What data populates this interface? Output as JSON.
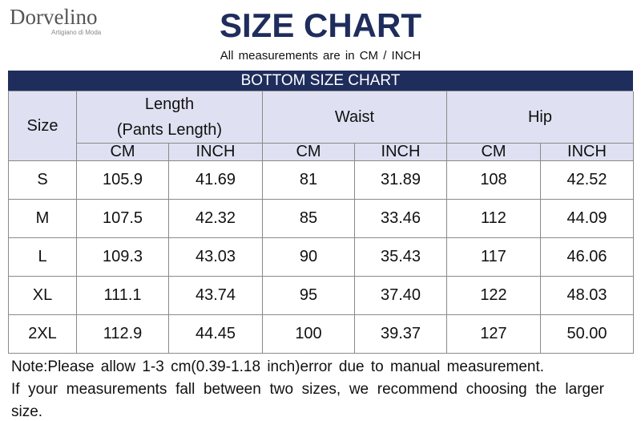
{
  "logo": {
    "brand": "Dorvelino",
    "tagline": "Artigiano di Moda"
  },
  "header": {
    "title": "SIZE CHART",
    "subtitle": "All measurements are in CM / INCH"
  },
  "table": {
    "caption": "BOTTOM SIZE CHART",
    "size_header": "Size",
    "groups": [
      {
        "lines": [
          "Length",
          "(Pants Length)"
        ]
      },
      {
        "lines": [
          "Waist"
        ]
      },
      {
        "lines": [
          "Hip"
        ]
      }
    ],
    "units": [
      "CM",
      "INCH",
      "CM",
      "INCH",
      "CM",
      "INCH"
    ],
    "rows": [
      [
        "S",
        "105.9",
        "41.69",
        "81",
        "31.89",
        "108",
        "42.52"
      ],
      [
        "M",
        "107.5",
        "42.32",
        "85",
        "33.46",
        "112",
        "44.09"
      ],
      [
        "L",
        "109.3",
        "43.03",
        "90",
        "35.43",
        "117",
        "46.06"
      ],
      [
        "XL",
        "111.1",
        "43.74",
        "95",
        "37.40",
        "122",
        "48.03"
      ],
      [
        "2XL",
        "112.9",
        "44.45",
        "100",
        "39.37",
        "127",
        "50.00"
      ]
    ]
  },
  "notes": [
    "Note:Please allow 1-3 cm(0.39-1.18 inch)error due to manual measurement.",
    "If your measurements fall between two sizes, we recommend choosing the larger size."
  ]
}
